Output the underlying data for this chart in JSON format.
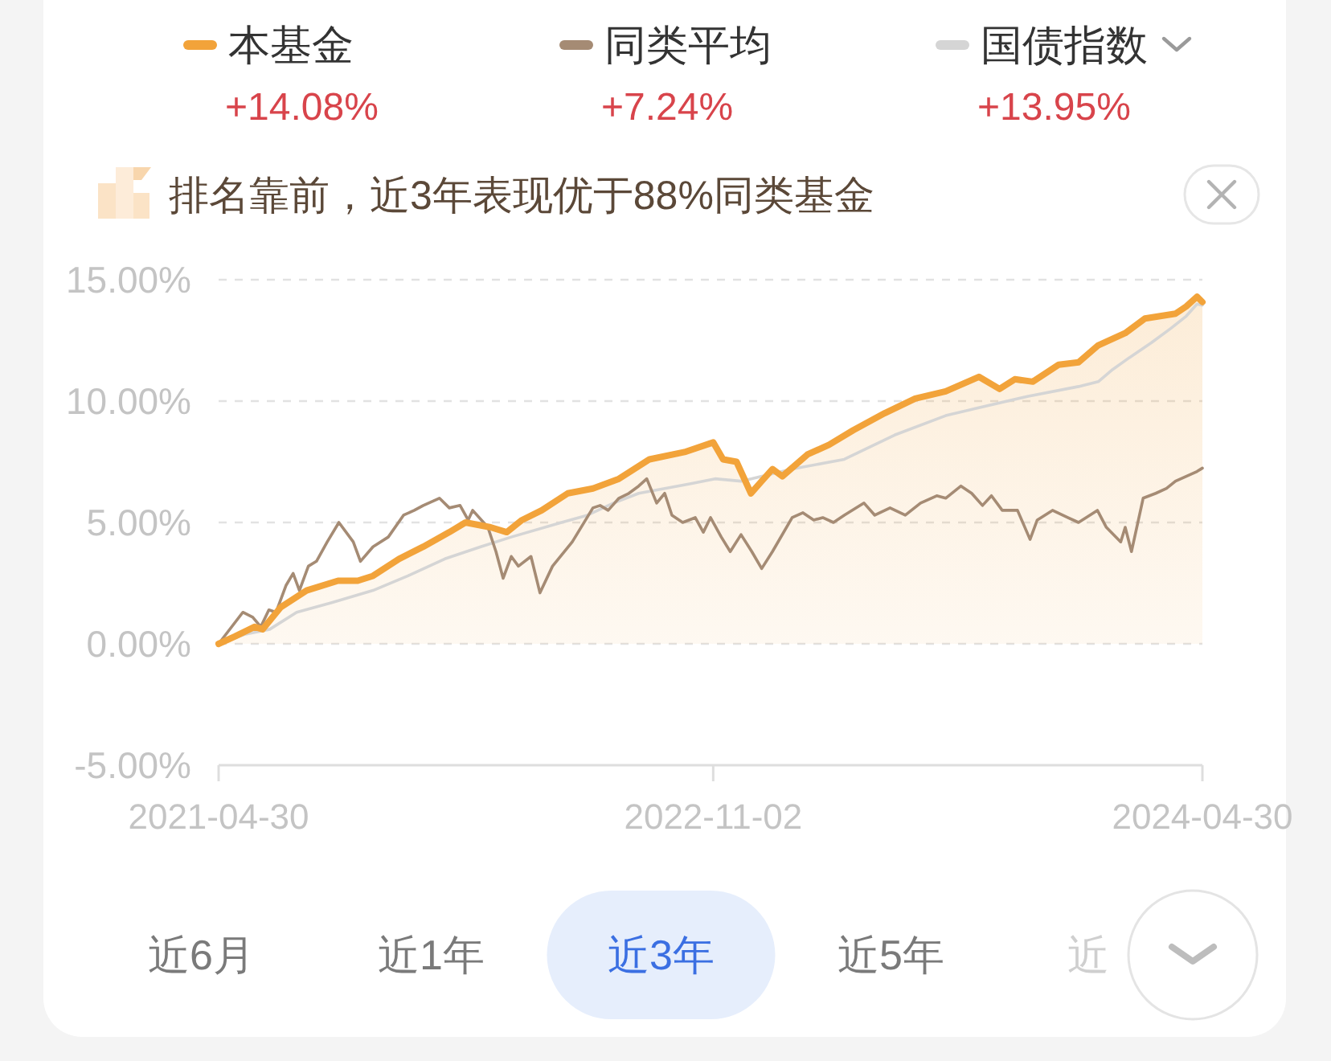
{
  "chart_data": {
    "type": "line",
    "subtitle": "排名靠前，近3年表现优于88%同类基金",
    "xlim": [
      "2021-04-30",
      "2024-04-30"
    ],
    "xticks": [
      "2021-04-30",
      "2022-11-02",
      "2024-04-30"
    ],
    "ylim": [
      -5,
      15
    ],
    "yticks": [
      {
        "value": -5,
        "label": "-5.00%"
      },
      {
        "value": 0,
        "label": "0.00%"
      },
      {
        "value": 5,
        "label": "5.00%"
      },
      {
        "value": 10,
        "label": "10.00%"
      },
      {
        "value": 15,
        "label": "15.00%"
      }
    ],
    "grid": "y",
    "legend": "top",
    "annotations": [
      "+14.08%",
      "+7.24%",
      "+13.95%",
      "近6月",
      "近1年",
      "近3年",
      "近5年",
      "近"
    ],
    "series": [
      {
        "name": "本基金",
        "type": "area",
        "color": "#f2a33a",
        "x": [
          "2021-04-30",
          "2021-05-18",
          "2021-06-09",
          "2021-06-18",
          "2021-07-08",
          "2021-08-06",
          "2021-09-10",
          "2021-10-02",
          "2021-10-19",
          "2021-11-17",
          "2021-12-14",
          "2022-01-12",
          "2022-01-30",
          "2022-02-27",
          "2022-03-17",
          "2022-04-03",
          "2022-04-25",
          "2022-05-24",
          "2022-06-21",
          "2022-07-20",
          "2022-08-23",
          "2022-10-01",
          "2022-11-02",
          "2022-11-13",
          "2022-11-28",
          "2022-12-14",
          "2022-12-26",
          "2023-01-07",
          "2023-01-18",
          "2023-02-15",
          "2023-03-11",
          "2023-04-07",
          "2023-05-12",
          "2023-06-15",
          "2023-07-19",
          "2023-08-25",
          "2023-09-17",
          "2023-10-04",
          "2023-10-24",
          "2023-11-22",
          "2023-12-14",
          "2024-01-05",
          "2024-02-04",
          "2024-02-26",
          "2024-03-14",
          "2024-03-31",
          "2024-04-12",
          "2024-04-24",
          "2024-04-30"
        ],
        "values": [
          0,
          0.3,
          0.7,
          0.6,
          1.5,
          2.2,
          2.6,
          2.6,
          2.8,
          3.5,
          4.0,
          4.6,
          5.0,
          4.8,
          4.6,
          5.1,
          5.5,
          6.2,
          6.4,
          6.8,
          7.6,
          7.9,
          8.3,
          7.6,
          7.5,
          6.2,
          6.7,
          7.2,
          6.9,
          7.8,
          8.2,
          8.8,
          9.5,
          10.1,
          10.4,
          11.0,
          10.5,
          10.9,
          10.8,
          11.5,
          11.6,
          12.3,
          12.8,
          13.4,
          13.5,
          13.6,
          13.9,
          14.3,
          14.08
        ]
      },
      {
        "name": "同类平均",
        "color": "#a58b74",
        "x": [
          "2021-04-30",
          "2021-05-27",
          "2021-06-07",
          "2021-06-16",
          "2021-06-25",
          "2021-07-03",
          "2021-07-14",
          "2021-07-22",
          "2021-07-29",
          "2021-08-08",
          "2021-08-17",
          "2021-08-29",
          "2021-09-11",
          "2021-09-27",
          "2021-10-05",
          "2021-10-19",
          "2021-11-05",
          "2021-11-22",
          "2021-12-04",
          "2021-12-14",
          "2022-01-01",
          "2022-01-12",
          "2022-01-24",
          "2022-02-02",
          "2022-02-07",
          "2022-02-24",
          "2022-03-05",
          "2022-03-13",
          "2022-03-22",
          "2022-03-30",
          "2022-04-13",
          "2022-04-23",
          "2022-05-07",
          "2022-05-29",
          "2022-06-21",
          "2022-06-29",
          "2022-07-08",
          "2022-07-20",
          "2022-07-31",
          "2022-08-11",
          "2022-08-20",
          "2022-08-31",
          "2022-09-09",
          "2022-09-17",
          "2022-09-29",
          "2022-10-13",
          "2022-10-22",
          "2022-10-30",
          "2022-11-11",
          "2022-11-21",
          "2022-12-03",
          "2022-12-15",
          "2022-12-26",
          "2023-01-07",
          "2023-01-29",
          "2023-02-10",
          "2023-02-22",
          "2023-03-04",
          "2023-03-16",
          "2023-03-28",
          "2023-04-19",
          "2023-05-01",
          "2023-05-18",
          "2023-06-04",
          "2023-06-21",
          "2023-07-09",
          "2023-07-19",
          "2023-08-05",
          "2023-08-17",
          "2023-08-29",
          "2023-09-08",
          "2023-09-20",
          "2023-10-07",
          "2023-10-21",
          "2023-10-29",
          "2023-11-15",
          "2023-12-02",
          "2023-12-14",
          "2024-01-04",
          "2024-01-14",
          "2024-01-30",
          "2024-02-04",
          "2024-02-11",
          "2024-02-24",
          "2024-03-09",
          "2024-03-21",
          "2024-03-31",
          "2024-04-12",
          "2024-04-24",
          "2024-04-30"
        ],
        "values": [
          0,
          1.3,
          1.1,
          0.7,
          1.4,
          1.3,
          2.4,
          2.9,
          2.2,
          3.2,
          3.4,
          4.2,
          5.0,
          4.2,
          3.4,
          4.0,
          4.4,
          5.3,
          5.5,
          5.7,
          6.0,
          5.6,
          5.7,
          5.1,
          5.5,
          4.8,
          3.8,
          2.7,
          3.6,
          3.2,
          3.6,
          2.1,
          3.2,
          4.2,
          5.6,
          5.7,
          5.5,
          6.0,
          6.2,
          6.5,
          6.8,
          5.8,
          6.2,
          5.3,
          5.0,
          5.2,
          4.6,
          5.2,
          4.4,
          3.8,
          4.5,
          3.8,
          3.1,
          3.8,
          5.2,
          5.4,
          5.1,
          5.2,
          5.0,
          5.3,
          5.8,
          5.3,
          5.6,
          5.3,
          5.8,
          6.1,
          6.0,
          6.5,
          6.2,
          5.7,
          6.1,
          5.5,
          5.5,
          4.3,
          5.1,
          5.5,
          5.2,
          5.0,
          5.5,
          4.8,
          4.2,
          4.8,
          3.8,
          6.0,
          6.2,
          6.4,
          6.7,
          6.9,
          7.1,
          7.24
        ]
      },
      {
        "name": "国债指数",
        "color": "#d5d5d5",
        "x": [
          "2021-04-30",
          "2021-05-30",
          "2021-06-26",
          "2021-07-26",
          "2021-09-03",
          "2021-10-19",
          "2021-11-27",
          "2022-01-07",
          "2022-02-16",
          "2022-03-22",
          "2022-05-17",
          "2022-06-15",
          "2022-07-14",
          "2022-08-11",
          "2022-09-09",
          "2022-10-08",
          "2022-11-04",
          "2022-12-03",
          "2023-01-29",
          "2023-03-28",
          "2023-05-23",
          "2023-07-19",
          "2023-08-22",
          "2023-10-19",
          "2023-12-14",
          "2024-01-05",
          "2024-01-21",
          "2024-02-09",
          "2024-03-04",
          "2024-03-26",
          "2024-04-12",
          "2024-04-24",
          "2024-04-30"
        ],
        "values": [
          0,
          0.4,
          0.6,
          1.3,
          1.7,
          2.2,
          2.8,
          3.5,
          4.0,
          4.4,
          5.0,
          5.3,
          5.8,
          6.2,
          6.4,
          6.6,
          6.8,
          6.7,
          7.2,
          7.6,
          8.6,
          9.4,
          9.7,
          10.2,
          10.6,
          10.8,
          11.3,
          11.8,
          12.4,
          13.0,
          13.5,
          14.0,
          13.95
        ]
      }
    ]
  }
}
